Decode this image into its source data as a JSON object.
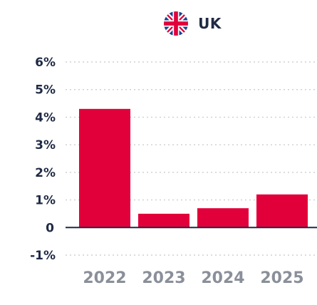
{
  "header": {
    "country": "UK",
    "flag_icon": "uk-flag-icon"
  },
  "colors": {
    "bar": "#e2003b",
    "tick_text": "#1f2a44",
    "category_text": "#8a8f99",
    "grid": "#c5c8cc",
    "axis": "#1f2a44"
  },
  "chart_data": {
    "type": "bar",
    "categories": [
      "2022",
      "2023",
      "2024",
      "2025"
    ],
    "values": [
      4.3,
      0.5,
      0.7,
      1.2
    ],
    "yticks": [
      -1,
      0,
      1,
      2,
      3,
      4,
      5,
      6
    ],
    "ytick_labels": [
      "-1%",
      "0",
      "1%",
      "2%",
      "3%",
      "4%",
      "5%",
      "6%"
    ],
    "ylim": [
      -1,
      6
    ],
    "grid": "dotted horizontal",
    "legend": "none",
    "title": "",
    "xlabel": "",
    "ylabel": ""
  }
}
